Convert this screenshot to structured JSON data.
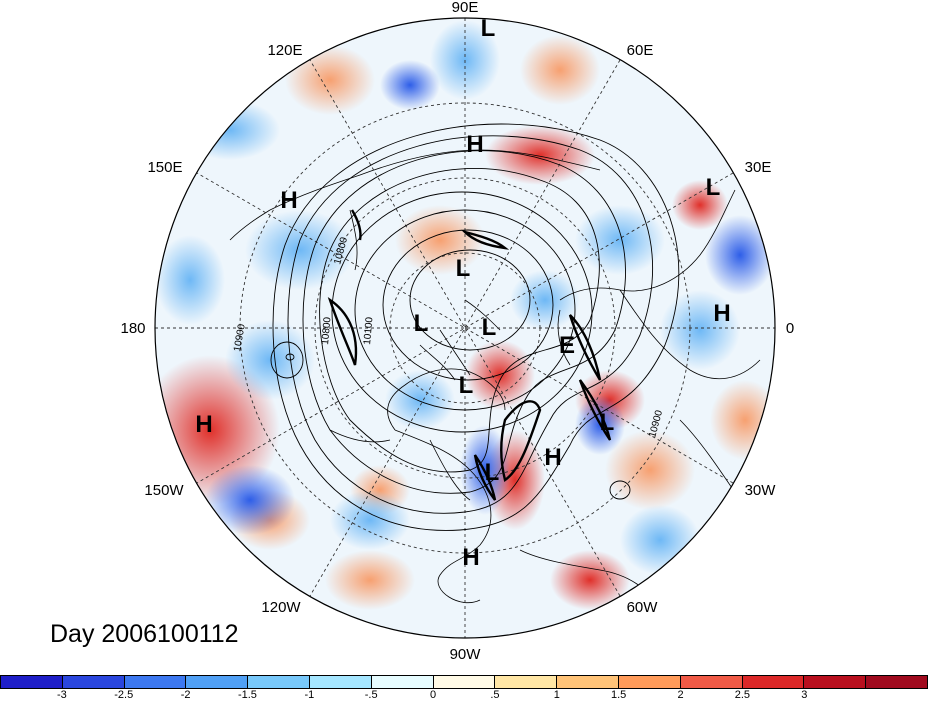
{
  "map": {
    "longitude_labels": [
      "90E",
      "60E",
      "120E",
      "30E",
      "150E",
      "0",
      "180",
      "30W",
      "150W",
      "60W",
      "120W",
      "90W"
    ],
    "pressure_centers": [
      "L",
      "H",
      "H",
      "L",
      "L",
      "H",
      "L",
      "L",
      "L",
      "E",
      "L",
      "L",
      "H",
      "H",
      "H"
    ],
    "contour_labels": [
      "10800",
      "10800",
      "10900",
      "10900",
      "10100"
    ]
  },
  "title": "Day 2006100112",
  "colorbar": {
    "colors": [
      "#1e1ec8",
      "#2a46de",
      "#3c78f0",
      "#50a0f5",
      "#78c8fa",
      "#a5e6ff",
      "#e6fcff",
      "#fffae6",
      "#ffe6a5",
      "#ffc378",
      "#ff9b5a",
      "#f05a46",
      "#dc2828",
      "#b90f1e",
      "#a00a1e"
    ],
    "ticks": [
      "-3",
      "-2.5",
      "-2",
      "-1.5",
      "-1",
      "-.5",
      "0",
      ".5",
      "1",
      "1.5",
      "2",
      "2.5",
      "3"
    ]
  }
}
